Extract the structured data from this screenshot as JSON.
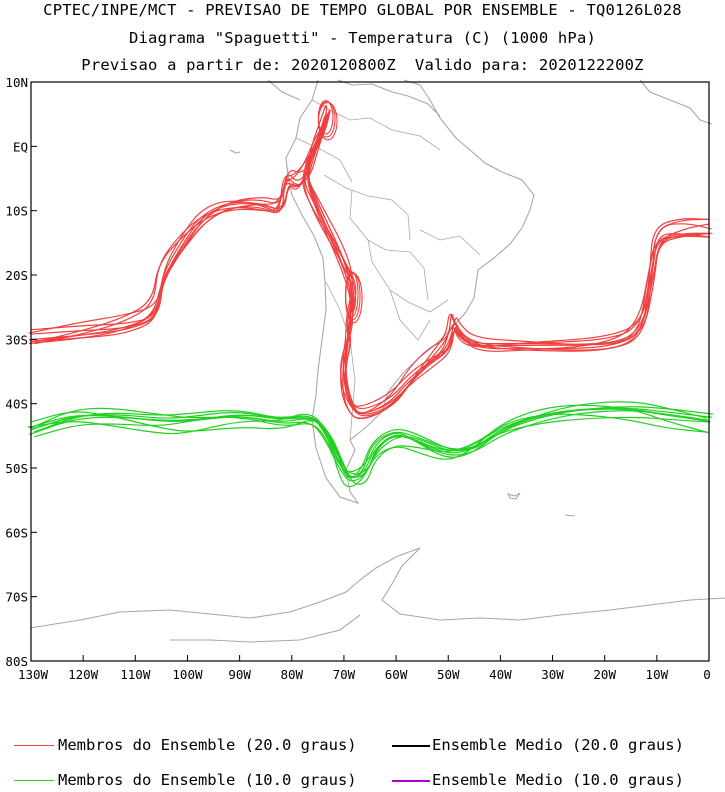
{
  "titles": {
    "line1": "CPTEC/INPE/MCT - PREVISAO DE TEMPO GLOBAL POR ENSEMBLE - TQ0126L028",
    "line2": "Diagrama \"Spaguetti\" - Temperatura (C) (1000 hPa)",
    "line3": "Previsao a partir de: 2020120800Z  Valido para: 2020122200Z"
  },
  "colors": {
    "member20": "#ef4040",
    "member10": "#22d022",
    "mean20": "#000000",
    "mean10": "#b000d0",
    "land": "#a8a8a8"
  },
  "legend": {
    "item1": "Membros do Ensemble (20.0 graus)",
    "item2": "Ensemble Medio (20.0 graus)",
    "item3": "Membros do Ensemble (10.0 graus)",
    "item4": "Ensemble Medio (10.0 graus)"
  },
  "chart_data": {
    "type": "line",
    "title": "Diagrama \"Spaguetti\" - Temperatura (C) (1000 hPa)",
    "x_axis": {
      "range": [
        -130,
        0
      ],
      "tick_values": [
        -130,
        -120,
        -110,
        -100,
        -90,
        -80,
        -70,
        -60,
        -50,
        -40,
        -30,
        -20,
        -10,
        0
      ],
      "tick_labels": [
        "130W",
        "120W",
        "110W",
        "100W",
        "90W",
        "80W",
        "70W",
        "60W",
        "50W",
        "40W",
        "30W",
        "20W",
        "10W",
        "0"
      ]
    },
    "y_axis": {
      "range": [
        -80,
        10
      ],
      "tick_values": [
        10,
        0,
        -10,
        -20,
        -30,
        -40,
        -50,
        -60,
        -70,
        -80
      ],
      "tick_labels": [
        "10N",
        "EQ",
        "10S",
        "20S",
        "30S",
        "40S",
        "50S",
        "60S",
        "70S",
        "80S"
      ]
    },
    "grid": false,
    "series": [
      {
        "name": "Membros do Ensemble (20.0 graus)",
        "isotherm": 20.0,
        "members": 9,
        "points": [
          [
            -130,
            -30
          ],
          [
            -120,
            -29
          ],
          [
            -112,
            -28
          ],
          [
            -106,
            -26
          ],
          [
            -105,
            -20
          ],
          [
            -101,
            -15
          ],
          [
            -97,
            -11
          ],
          [
            -92,
            -9
          ],
          [
            -86,
            -9
          ],
          [
            -82,
            -10
          ],
          [
            -81,
            -5
          ],
          [
            -79,
            -6
          ],
          [
            -77,
            -4
          ],
          [
            -76,
            -1
          ],
          [
            -74,
            3
          ],
          [
            -73,
            6
          ],
          [
            -74,
            2
          ],
          [
            -78,
            -4
          ],
          [
            -75,
            -10
          ],
          [
            -70,
            -18
          ],
          [
            -68,
            -23
          ],
          [
            -69,
            -27
          ],
          [
            -69,
            -30
          ],
          [
            -70,
            -33
          ],
          [
            -70,
            -37
          ],
          [
            -69,
            -40
          ],
          [
            -67,
            -42
          ],
          [
            -61,
            -40
          ],
          [
            -57,
            -36
          ],
          [
            -53,
            -33
          ],
          [
            -50,
            -31
          ],
          [
            -49,
            -27
          ],
          [
            -48,
            -29
          ],
          [
            -45,
            -31
          ],
          [
            -35,
            -31
          ],
          [
            -20,
            -31
          ],
          [
            -13,
            -29
          ],
          [
            -11,
            -20
          ],
          [
            -10,
            -14
          ],
          [
            -5,
            -13
          ],
          [
            0,
            -13
          ]
        ]
      },
      {
        "name": "Membros do Ensemble (10.0 graus)",
        "isotherm": 10.0,
        "members": 9,
        "points": [
          [
            -130,
            -44
          ],
          [
            -122,
            -42
          ],
          [
            -115,
            -42
          ],
          [
            -105,
            -43
          ],
          [
            -100,
            -43
          ],
          [
            -90,
            -42
          ],
          [
            -82,
            -43
          ],
          [
            -76,
            -42
          ],
          [
            -73,
            -45
          ],
          [
            -71,
            -49
          ],
          [
            -69,
            -52
          ],
          [
            -66,
            -51
          ],
          [
            -64,
            -47
          ],
          [
            -60,
            -45
          ],
          [
            -56,
            -46
          ],
          [
            -50,
            -48
          ],
          [
            -45,
            -47
          ],
          [
            -40,
            -44
          ],
          [
            -33,
            -42
          ],
          [
            -25,
            -41
          ],
          [
            -15,
            -41
          ],
          [
            -8,
            -42
          ],
          [
            0,
            -43
          ]
        ]
      },
      {
        "name": "Ensemble Medio (20.0 graus)",
        "isotherm": 20.0,
        "points": []
      },
      {
        "name": "Ensemble Medio (10.0 graus)",
        "isotherm": 10.0,
        "points": []
      }
    ]
  }
}
